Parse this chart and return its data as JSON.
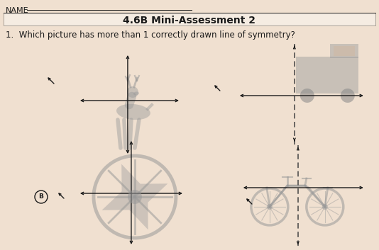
{
  "background_color": "#f0e0d0",
  "title": "4.6B Mini-Assessment 2",
  "name_label": "NAME",
  "question": "1.  Which picture has more than 1 correctly drawn line of symmetry?",
  "answer_label": "B",
  "title_fontsize": 10,
  "question_fontsize": 8.5,
  "text_color": "#1a1a1a",
  "line_color": "#1a1a1a",
  "dashed_color": "#444444",
  "figure_color": "#999999",
  "figure_alpha": 0.45
}
